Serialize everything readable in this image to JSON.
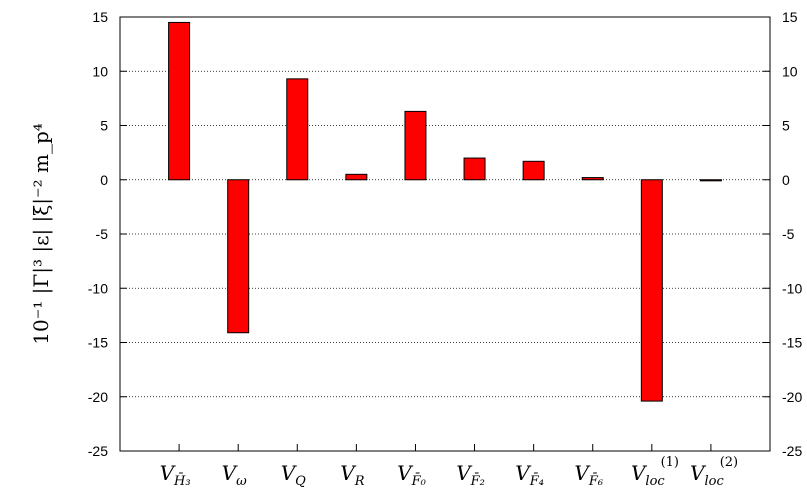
{
  "chart_data": {
    "type": "bar",
    "categories": [
      {
        "base": "V",
        "sub": "H̄₃",
        "sup": ""
      },
      {
        "base": "V",
        "sub": "ω",
        "sup": ""
      },
      {
        "base": "V",
        "sub": "Q",
        "sup": ""
      },
      {
        "base": "V",
        "sub": "R",
        "sup": ""
      },
      {
        "base": "V",
        "sub": "F̄₀",
        "sup": ""
      },
      {
        "base": "V",
        "sub": "F̄₂",
        "sup": ""
      },
      {
        "base": "V",
        "sub": "F̄₄",
        "sup": ""
      },
      {
        "base": "V",
        "sub": "F̄₆",
        "sup": ""
      },
      {
        "base": "V",
        "sub": "loc",
        "sup": "(1)"
      },
      {
        "base": "V",
        "sub": "loc",
        "sup": "(2)"
      }
    ],
    "values": [
      14.5,
      -14.1,
      9.3,
      0.5,
      6.3,
      2.0,
      1.7,
      0.2,
      -20.4,
      -0.1
    ],
    "ylabel": "10⁻¹ |Γ|³ |ε| |ξ|⁻² m_p⁴",
    "ylim": [
      -25,
      15
    ],
    "yticks": [
      15,
      10,
      5,
      0,
      -5,
      -10,
      -15,
      -20,
      -25
    ],
    "ytick_labels": [
      "15",
      "10",
      "5",
      "0",
      "-5",
      "-10",
      "-15",
      "-20",
      "-25"
    ],
    "grid": true,
    "bar_color": "#ff0000",
    "bar_edge_color": "#000000",
    "mirror_right_axis": true
  }
}
